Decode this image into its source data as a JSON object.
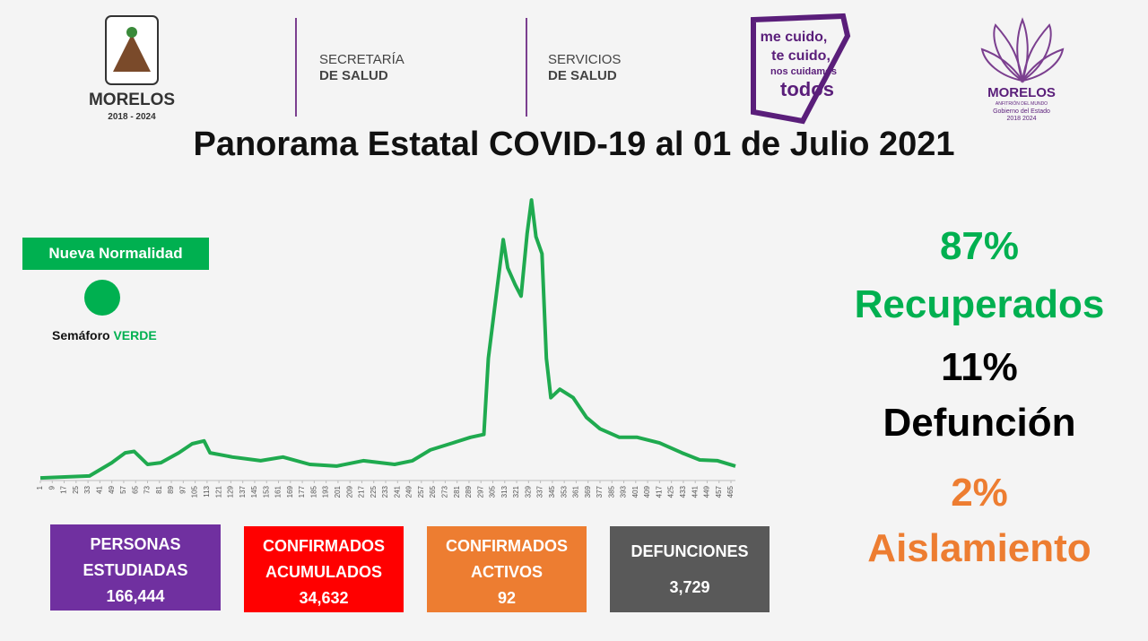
{
  "header": {
    "logos": [
      {
        "lines": [
          "MORELOS",
          "2018 - 2024"
        ]
      },
      {
        "lines": [
          "SECRETARÍA",
          "DE SALUD"
        ]
      },
      {
        "lines": [
          "SERVICIOS",
          "DE SALUD"
        ]
      },
      {
        "lines": [
          "me cuido,",
          "te cuido,",
          "nos cuidamos",
          "todos"
        ]
      },
      {
        "lines": [
          "MORELOS",
          "ANFITRIÓN DEL MUNDO",
          "Gobierno del Estado",
          "2018 2024"
        ]
      }
    ],
    "title": "Panorama Estatal COVID-19 al 01 de Julio 2021"
  },
  "status": {
    "badge": "Nueva Normalidad",
    "color": "#00b050",
    "semaforo": "Semáforo",
    "semaforo_color": "VERDE"
  },
  "chart_data": {
    "type": "line",
    "color": "#1faa4f",
    "x": [
      1,
      34,
      49,
      58,
      64,
      73,
      82,
      94,
      103,
      111,
      115,
      130,
      149,
      164,
      182,
      200,
      218,
      239,
      251,
      263,
      278,
      290,
      299,
      302,
      306,
      312,
      315,
      320,
      324,
      328,
      331,
      334,
      338,
      341,
      344,
      350,
      359,
      368,
      377,
      390,
      402,
      417,
      432,
      444,
      456,
      468
    ],
    "values": [
      0.6,
      1.3,
      6,
      9.5,
      10,
      5.4,
      6,
      9.5,
      12.7,
      13.7,
      9.5,
      8,
      6.7,
      8,
      5.4,
      4.8,
      6.7,
      5.4,
      6.7,
      10.5,
      13,
      15,
      16,
      43,
      60,
      85,
      75,
      69,
      65,
      87,
      99,
      86,
      80,
      43,
      29,
      32,
      29,
      22,
      18,
      15,
      15,
      13,
      9.5,
      7,
      6.7,
      4.8
    ],
    "xlim": [
      1,
      468
    ],
    "ylim": [
      0,
      100
    ],
    "xticks": [
      1,
      9,
      17,
      25,
      33,
      41,
      49,
      57,
      65,
      73,
      81,
      89,
      97,
      105,
      113,
      121,
      129,
      137,
      145,
      153,
      161,
      169,
      177,
      185,
      193,
      201,
      209,
      217,
      225,
      233,
      241,
      249,
      257,
      265,
      273,
      281,
      289,
      297,
      305,
      313,
      321,
      329,
      337,
      345,
      353,
      361,
      369,
      377,
      385,
      393,
      401,
      409,
      417,
      425,
      433,
      441,
      449,
      457,
      465
    ]
  },
  "stats": [
    {
      "value": "87%",
      "label": "Recuperados",
      "color": "#00b050"
    },
    {
      "value": "11%",
      "label": "Defunción",
      "color": "#000000"
    },
    {
      "value": "2%",
      "label": "Aislamiento",
      "color": "#ed7d31"
    }
  ],
  "boxes": [
    {
      "label": "PERSONAS ESTUDIADAS",
      "value": "166,444",
      "color": "#7030a0"
    },
    {
      "label": "CONFIRMADOS ACUMULADOS",
      "value": "34,632",
      "color": "#ff0000"
    },
    {
      "label": "CONFIRMADOS ACTIVOS",
      "value": "92",
      "color": "#ed7d31"
    },
    {
      "label": "DEFUNCIONES",
      "value": "3,729",
      "color": "#595959"
    }
  ]
}
